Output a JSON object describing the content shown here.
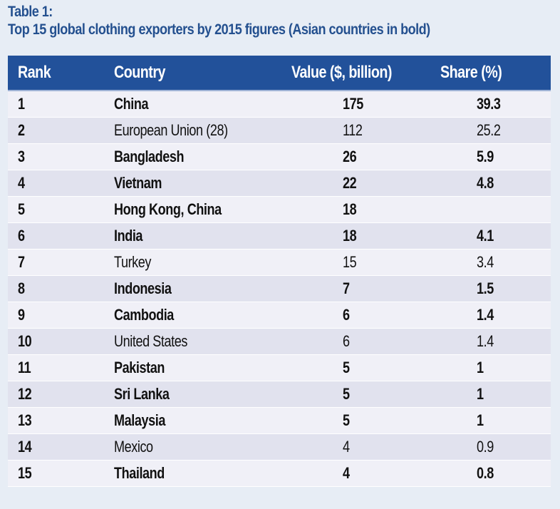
{
  "title": {
    "line1": "Table 1:",
    "line2": "Top 15 global clothing exporters by 2015 figures (Asian countries in bold)"
  },
  "colors": {
    "title": "#24508f",
    "header_bg": "#22519a",
    "row_light": "#f0f0f7",
    "row_dark": "#e1e2ee",
    "page_bg": "#e7edf5"
  },
  "table": {
    "headers": [
      "Rank",
      "Country",
      "Value ($, billion)",
      "Share (%)"
    ],
    "rows": [
      {
        "rank": "1",
        "country": "China",
        "value": "175",
        "share": "39.3",
        "asian": true
      },
      {
        "rank": "2",
        "country": "European Union (28)",
        "value": "112",
        "share": "25.2",
        "asian": false
      },
      {
        "rank": "3",
        "country": "Bangladesh",
        "value": "26",
        "share": "5.9",
        "asian": true
      },
      {
        "rank": "4",
        "country": "Vietnam",
        "value": "22",
        "share": "4.8",
        "asian": true
      },
      {
        "rank": "5",
        "country": "Hong Kong, China",
        "value": "18",
        "share": "",
        "asian": true
      },
      {
        "rank": "6",
        "country": "India",
        "value": "18",
        "share": "4.1",
        "asian": true
      },
      {
        "rank": "7",
        "country": "Turkey",
        "value": "15",
        "share": "3.4",
        "asian": false
      },
      {
        "rank": "8",
        "country": "Indonesia",
        "value": "7",
        "share": "1.5",
        "asian": true
      },
      {
        "rank": "9",
        "country": "Cambodia",
        "value": "6",
        "share": "1.4",
        "asian": true
      },
      {
        "rank": "10",
        "country": "United States",
        "value": "6",
        "share": "1.4",
        "asian": false
      },
      {
        "rank": "11",
        "country": "Pakistan",
        "value": "5",
        "share": "1",
        "asian": true
      },
      {
        "rank": "12",
        "country": "Sri Lanka",
        "value": "5",
        "share": "1",
        "asian": true
      },
      {
        "rank": "13",
        "country": "Malaysia",
        "value": "5",
        "share": "1",
        "asian": true
      },
      {
        "rank": "14",
        "country": "Mexico",
        "value": "4",
        "share": "0.9",
        "asian": false
      },
      {
        "rank": "15",
        "country": "Thailand",
        "value": "4",
        "share": "0.8",
        "asian": true
      }
    ]
  }
}
